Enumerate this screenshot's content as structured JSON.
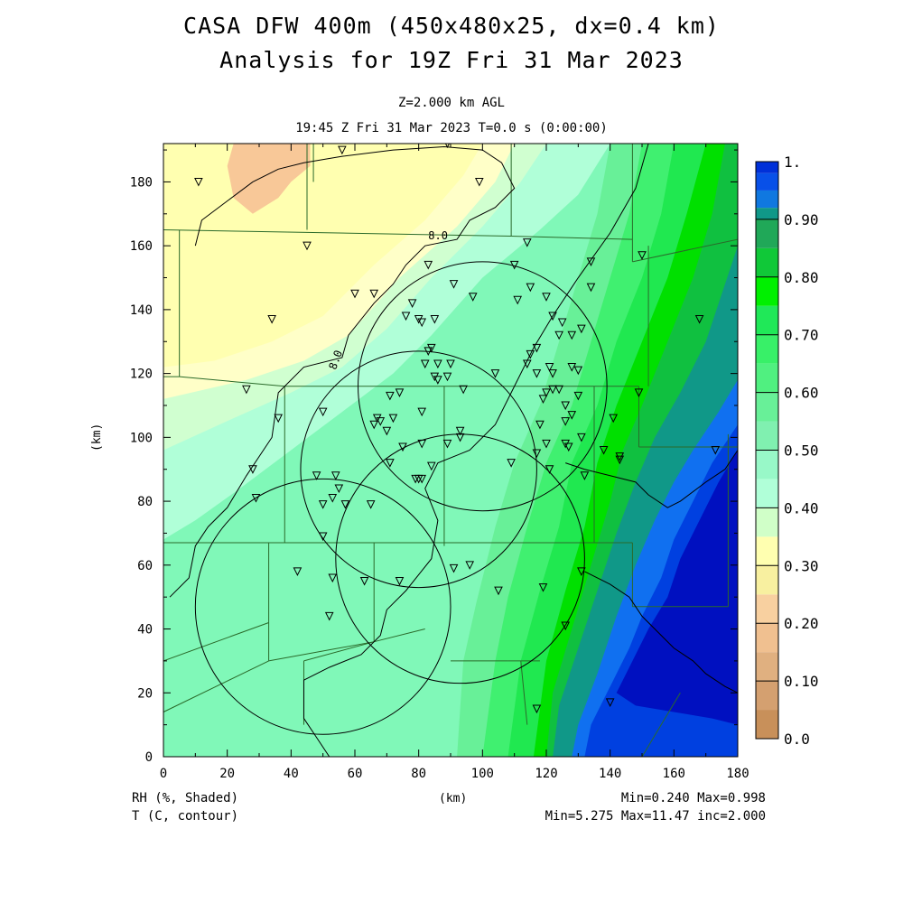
{
  "title": {
    "line1": "CASA DFW 400m (450x480x25, dx=0.4 km)",
    "line2": "Analysis for 19Z Fri 31 Mar 2023"
  },
  "subtitle": {
    "level": "Z=2.000 km AGL",
    "time": "19:45 Z Fri 31 Mar 2023   T=0.0 s (0:00:00)"
  },
  "footer": {
    "field1": "RH (%, Shaded)",
    "field2": "T (C, contour)",
    "xunit": "(km)",
    "stats1": "Min=0.240 Max=0.998",
    "stats2": "Min=5.275 Max=11.47 inc=2.000"
  },
  "chart_data": {
    "type": "heatmap",
    "xlabel": "(km)",
    "ylabel": "(km)",
    "xlim": [
      0,
      180
    ],
    "ylim": [
      0,
      192
    ],
    "xticks": [
      "0",
      "20",
      "40",
      "60",
      "80",
      "100",
      "120",
      "140",
      "160",
      "180"
    ],
    "yticks": [
      "0",
      "20",
      "40",
      "60",
      "80",
      "100",
      "120",
      "140",
      "160",
      "180"
    ],
    "colorbar": {
      "labels": [
        "0.0",
        "0.10",
        "0.20",
        "0.30",
        "0.40",
        "0.50",
        "0.60",
        "0.70",
        "0.80",
        "0.90",
        "1."
      ],
      "colors": [
        "#c8905a",
        "#d4a070",
        "#e0b080",
        "#f0c090",
        "#f8d0a0",
        "#f8f0a0",
        "#ffffb0",
        "#d0ffc8",
        "#b0ffd8",
        "#98f8c8",
        "#80f0b0",
        "#68f098",
        "#50f080",
        "#38f068",
        "#20e858",
        "#00f000",
        "#10c838",
        "#20a858",
        "#109888",
        "#1078e0",
        "#0850e8",
        "#0030d8",
        "#0010c0"
      ],
      "bounds": [
        0.0,
        0.05,
        0.1,
        0.15,
        0.2,
        0.25,
        0.3,
        0.35,
        0.4,
        0.45,
        0.5,
        0.55,
        0.6,
        0.65,
        0.7,
        0.75,
        0.8,
        0.85,
        0.9,
        0.92,
        0.95,
        0.98,
        1.0
      ]
    },
    "rh_field": {
      "min": 0.24,
      "max": 0.998,
      "description_bands": [
        {
          "level": 0.2,
          "color": "#f8c898"
        },
        {
          "level": 0.3,
          "color": "#ffffb0"
        },
        {
          "level": 0.35,
          "color": "#ffffc8"
        },
        {
          "level": 0.4,
          "color": "#d0ffd0"
        },
        {
          "level": 0.45,
          "color": "#b0ffd8"
        },
        {
          "level": 0.5,
          "color": "#80f8b8"
        },
        {
          "level": 0.55,
          "color": "#68f098"
        },
        {
          "level": 0.6,
          "color": "#40f070"
        },
        {
          "level": 0.65,
          "color": "#20e850"
        },
        {
          "level": 0.7,
          "color": "#00e000"
        },
        {
          "level": 0.75,
          "color": "#10c040"
        },
        {
          "level": 0.8,
          "color": "#109888"
        },
        {
          "level": 0.9,
          "color": "#1070f0"
        },
        {
          "level": 0.95,
          "color": "#0040e0"
        },
        {
          "level": 1.0,
          "color": "#0010c0"
        }
      ]
    },
    "temp_contour": {
      "min": 5.275,
      "max": 11.47,
      "inc": 2.0,
      "labels": [
        "8.0",
        "8.0"
      ]
    },
    "radar_rings": [
      {
        "cx": 100,
        "cy": 116,
        "r": 39
      },
      {
        "cx": 80,
        "cy": 90,
        "r": 37
      },
      {
        "cx": 93,
        "cy": 62,
        "r": 39
      },
      {
        "cx": 50,
        "cy": 47,
        "r": 40
      }
    ],
    "stations": [
      [
        11,
        180
      ],
      [
        56,
        190
      ],
      [
        89,
        192
      ],
      [
        99,
        180
      ],
      [
        45,
        160
      ],
      [
        34,
        137
      ],
      [
        26,
        115
      ],
      [
        36,
        106
      ],
      [
        50,
        108
      ],
      [
        28,
        90
      ],
      [
        29,
        81
      ],
      [
        60,
        145
      ],
      [
        66,
        145
      ],
      [
        83,
        154
      ],
      [
        91,
        148
      ],
      [
        97,
        144
      ],
      [
        78,
        142
      ],
      [
        80,
        137
      ],
      [
        81,
        136
      ],
      [
        85,
        137
      ],
      [
        76,
        138
      ],
      [
        84,
        128
      ],
      [
        83,
        127
      ],
      [
        86,
        123
      ],
      [
        82,
        123
      ],
      [
        85,
        119
      ],
      [
        86,
        118
      ],
      [
        89,
        119
      ],
      [
        94,
        115
      ],
      [
        90,
        123
      ],
      [
        104,
        120
      ],
      [
        110,
        154
      ],
      [
        114,
        161
      ],
      [
        115,
        147
      ],
      [
        111,
        143
      ],
      [
        120,
        144
      ],
      [
        122,
        138
      ],
      [
        124,
        132
      ],
      [
        125,
        136
      ],
      [
        128,
        132
      ],
      [
        131,
        134
      ],
      [
        134,
        147
      ],
      [
        134,
        155
      ],
      [
        117,
        128
      ],
      [
        115,
        126
      ],
      [
        114,
        123
      ],
      [
        117,
        120
      ],
      [
        121,
        122
      ],
      [
        122,
        120
      ],
      [
        119,
        112
      ],
      [
        120,
        114
      ],
      [
        122,
        115
      ],
      [
        124,
        115
      ],
      [
        126,
        110
      ],
      [
        128,
        107
      ],
      [
        128,
        122
      ],
      [
        130,
        121
      ],
      [
        130,
        113
      ],
      [
        126,
        105
      ],
      [
        118,
        104
      ],
      [
        120,
        98
      ],
      [
        127,
        97
      ],
      [
        131,
        100
      ],
      [
        132,
        88
      ],
      [
        138,
        96
      ],
      [
        141,
        106
      ],
      [
        143,
        93
      ],
      [
        143,
        94
      ],
      [
        149,
        114
      ],
      [
        150,
        157
      ],
      [
        168,
        137
      ],
      [
        173,
        96
      ],
      [
        74,
        114
      ],
      [
        71,
        113
      ],
      [
        67,
        106
      ],
      [
        66,
        104
      ],
      [
        68,
        105
      ],
      [
        70,
        102
      ],
      [
        72,
        106
      ],
      [
        81,
        108
      ],
      [
        93,
        102
      ],
      [
        93,
        100
      ],
      [
        89,
        98
      ],
      [
        81,
        98
      ],
      [
        75,
        97
      ],
      [
        71,
        92
      ],
      [
        79,
        87
      ],
      [
        80,
        87
      ],
      [
        81,
        87
      ],
      [
        84,
        91
      ],
      [
        109,
        92
      ],
      [
        117,
        95
      ],
      [
        121,
        90
      ],
      [
        126,
        98
      ],
      [
        54,
        88
      ],
      [
        48,
        88
      ],
      [
        55,
        84
      ],
      [
        53,
        81
      ],
      [
        50,
        79
      ],
      [
        57,
        79
      ],
      [
        65,
        79
      ],
      [
        50,
        69
      ],
      [
        53,
        56
      ],
      [
        42,
        58
      ],
      [
        63,
        55
      ],
      [
        74,
        55
      ],
      [
        96,
        60
      ],
      [
        91,
        59
      ],
      [
        105,
        52
      ],
      [
        119,
        53
      ],
      [
        126,
        41
      ],
      [
        131,
        58
      ],
      [
        117,
        15
      ],
      [
        140,
        17
      ],
      [
        52,
        44
      ]
    ]
  }
}
